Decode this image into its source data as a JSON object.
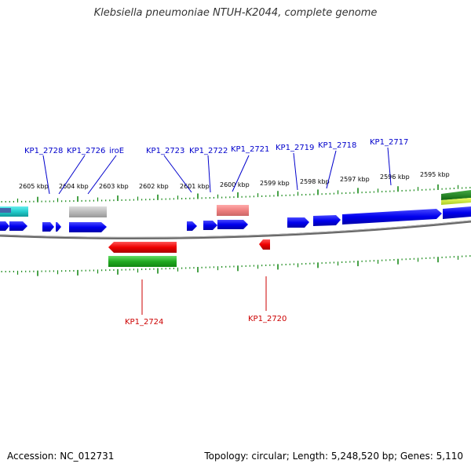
{
  "title": "Klebsiella pneumoniae NTUH-K2044, complete genome",
  "footer": {
    "accession": "Accession: NC_012731",
    "summary": "Topology: circular; Length: 5,248,520 bp; Genes: 5,110"
  },
  "colors": {
    "forward_cds": "#0000ee",
    "reverse_cds": "#ee0000",
    "backbone": "#777777",
    "tick": "#1a8a1a",
    "label_forward": "#0000cc",
    "label_reverse": "#cc0000"
  },
  "scale_labels": [
    "2605 kbp",
    "2604 kbp",
    "2603 kbp",
    "2602 kbp",
    "2601 kbp",
    "2600 kbp",
    "2599 kbp",
    "2598 kbp",
    "2597 kbp",
    "2596 kbp",
    "2595 kbp"
  ],
  "forward_labels": [
    "KP1_2728",
    "KP1_2726",
    "iroE",
    "KP1_2723",
    "KP1_2722",
    "KP1_2721",
    "KP1_2719",
    "KP1_2718",
    "KP1_2717"
  ],
  "reverse_labels": [
    "KP1_2724",
    "KP1_2720"
  ]
}
